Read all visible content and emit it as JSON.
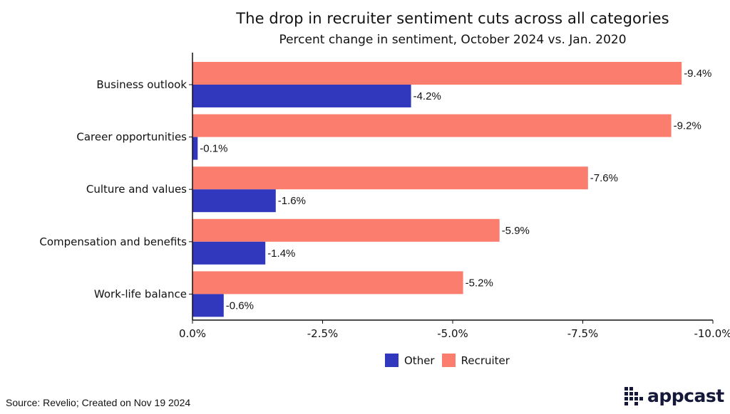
{
  "header": {
    "title": "The drop in recruiter sentiment cuts across all categories",
    "subtitle": "Percent change in sentiment, October 2024 vs. Jan. 2020"
  },
  "chart_data": {
    "type": "bar",
    "orientation": "horizontal",
    "categories": [
      "Business outlook",
      "Career opportunities",
      "Culture and values",
      "Compensation and benefits",
      "Work-life balance"
    ],
    "series": [
      {
        "name": "Recruiter",
        "color": "#FA7D6E",
        "values": [
          -9.4,
          -9.2,
          -7.6,
          -5.9,
          -5.2
        ],
        "labels": [
          "-9.4%",
          "-9.2%",
          "-7.6%",
          "-5.9%",
          "-5.2%"
        ]
      },
      {
        "name": "Other",
        "color": "#3238BE",
        "values": [
          -4.2,
          -0.1,
          -1.6,
          -1.4,
          -0.6
        ],
        "labels": [
          "-4.2%",
          "-0.1%",
          "-1.6%",
          "-1.4%",
          "-0.6%"
        ]
      }
    ],
    "xlim": [
      0,
      -10
    ],
    "xticks": [
      0,
      -2.5,
      -5,
      -7.5,
      -10
    ],
    "xtick_labels": [
      "0.0%",
      "-2.5%",
      "-5.0%",
      "-7.5%",
      "-10.0%"
    ],
    "grid": false,
    "legend_position": "bottom"
  },
  "legend": {
    "items": [
      {
        "label": "Other",
        "color": "#3238BE"
      },
      {
        "label": "Recruiter",
        "color": "#FA7D6E"
      }
    ]
  },
  "footer": {
    "source": "Source: Revelio; Created on Nov 19 2024",
    "logo_text": "appcast",
    "logo_color": "#16183A"
  }
}
